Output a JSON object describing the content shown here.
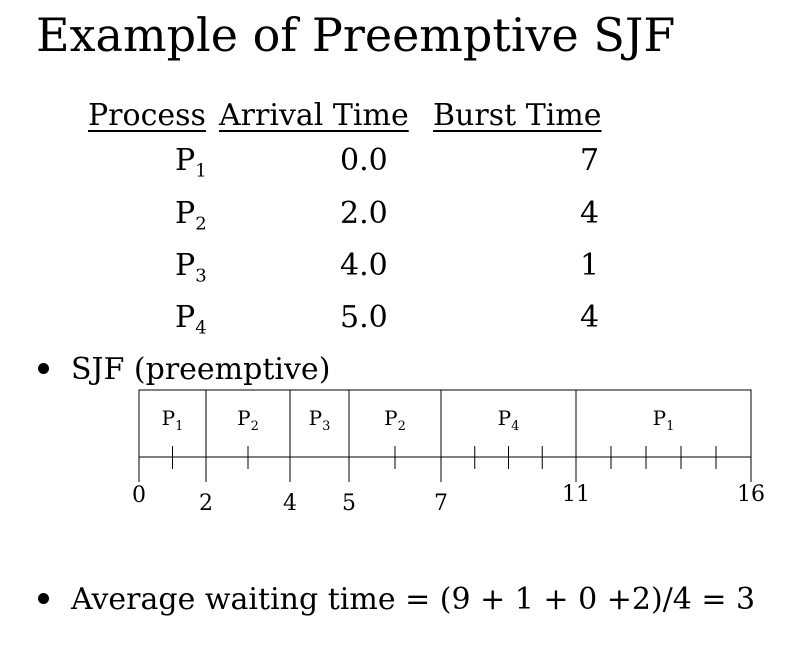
{
  "title": "Example of Preemptive SJF",
  "table": {
    "headers": [
      "Process",
      "Arrival Time",
      "Burst Time"
    ],
    "rows": [
      {
        "process": "P",
        "sub": "1",
        "arrival": "0.0",
        "burst": "7"
      },
      {
        "process": "P",
        "sub": "2",
        "arrival": "2.0",
        "burst": "4"
      },
      {
        "process": "P",
        "sub": "3",
        "arrival": "4.0",
        "burst": "1"
      },
      {
        "process": "P",
        "sub": "4",
        "arrival": "5.0",
        "burst": "4"
      }
    ]
  },
  "bullets": {
    "sjf": "SJF (preemptive)",
    "avg": "Average waiting time = (9 + 1 + 0 +2)/4 = 3"
  },
  "gantt": {
    "segments": [
      {
        "process": "P",
        "sub": "1",
        "start": 0,
        "end": 2
      },
      {
        "process": "P",
        "sub": "2",
        "start": 2,
        "end": 4
      },
      {
        "process": "P",
        "sub": "3",
        "start": 4,
        "end": 5
      },
      {
        "process": "P",
        "sub": "2",
        "start": 5,
        "end": 7
      },
      {
        "process": "P",
        "sub": "4",
        "start": 7,
        "end": 11
      },
      {
        "process": "P",
        "sub": "1",
        "start": 11,
        "end": 16
      }
    ],
    "tick_labels": [
      "0",
      "2",
      "4",
      "5",
      "7",
      "11",
      "16"
    ],
    "minor_ticks": [
      1,
      3,
      6,
      8,
      9,
      10,
      12,
      13,
      14,
      15
    ],
    "axis_range": [
      0,
      16
    ]
  }
}
